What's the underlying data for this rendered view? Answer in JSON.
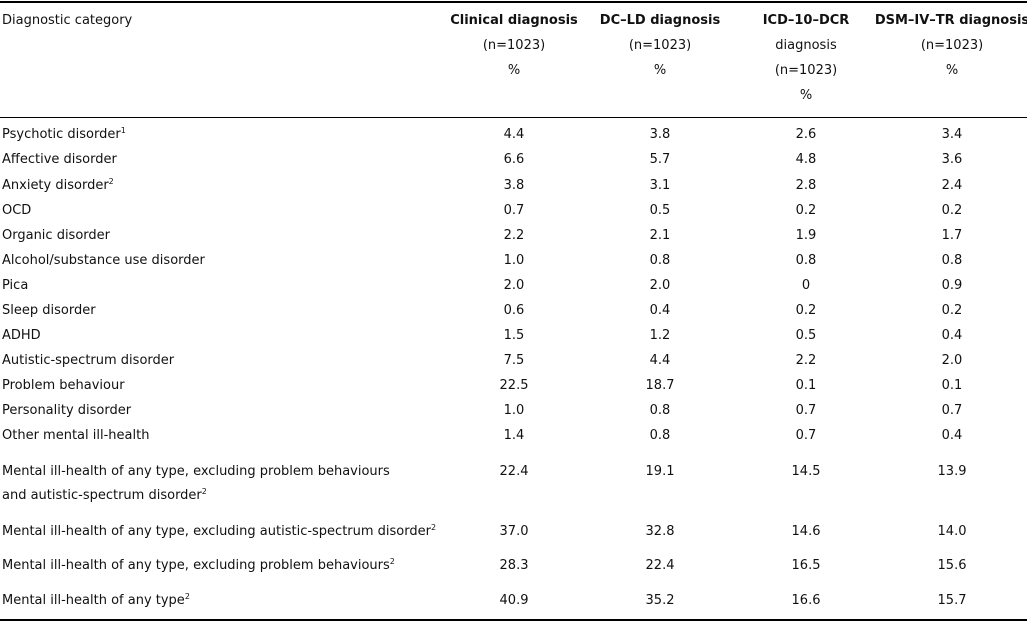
{
  "table": {
    "header": {
      "label": "Diagnostic category",
      "columns": [
        [
          "Clinical diagnosis",
          "(n=1023)",
          "%"
        ],
        [
          "DC–LD diagnosis",
          "(n=1023)",
          "%"
        ],
        [
          "ICD–10–DCR",
          "diagnosis",
          "(n=1023)",
          "%"
        ],
        [
          "DSM–IV–TR diagnosis",
          "(n=1023)",
          "%"
        ]
      ]
    },
    "rows": [
      {
        "label": "Psychotic disorder",
        "note": "1",
        "values": [
          "4.4",
          "3.8",
          "2.6",
          "3.4"
        ]
      },
      {
        "label": "Affective disorder",
        "values": [
          "6.6",
          "5.7",
          "4.8",
          "3.6"
        ]
      },
      {
        "label": "Anxiety disorder",
        "note": "2",
        "values": [
          "3.8",
          "3.1",
          "2.8",
          "2.4"
        ]
      },
      {
        "label": "OCD",
        "values": [
          "0.7",
          "0.5",
          "0.2",
          "0.2"
        ]
      },
      {
        "label": "Organic disorder",
        "values": [
          "2.2",
          "2.1",
          "1.9",
          "1.7"
        ]
      },
      {
        "label": "Alcohol/substance use disorder",
        "values": [
          "1.0",
          "0.8",
          "0.8",
          "0.8"
        ]
      },
      {
        "label": "Pica",
        "values": [
          "2.0",
          "2.0",
          "0",
          "0.9"
        ]
      },
      {
        "label": "Sleep disorder",
        "values": [
          "0.6",
          "0.4",
          "0.2",
          "0.2"
        ]
      },
      {
        "label": "ADHD",
        "values": [
          "1.5",
          "1.2",
          "0.5",
          "0.4"
        ]
      },
      {
        "label": "Autistic-spectrum disorder",
        "values": [
          "7.5",
          "4.4",
          "2.2",
          "2.0"
        ]
      },
      {
        "label": "Problem behaviour",
        "values": [
          "22.5",
          "18.7",
          "0.1",
          "0.1"
        ]
      },
      {
        "label": "Personality disorder",
        "values": [
          "1.0",
          "0.8",
          "0.7",
          "0.7"
        ]
      },
      {
        "label": "Other mental ill-health",
        "values": [
          "1.4",
          "0.8",
          "0.7",
          "0.4"
        ]
      },
      {
        "label": [
          "Mental ill-health of any type, excluding problem behaviours",
          "and autistic-spectrum disorder"
        ],
        "note": "2",
        "values": [
          "22.4",
          "19.1",
          "14.5",
          "13.9"
        ]
      },
      {
        "label": "Mental ill-health of any type, excluding autistic-spectrum disorder",
        "note": "2",
        "values": [
          "37.0",
          "32.8",
          "14.6",
          "14.0"
        ]
      },
      {
        "label": "Mental ill-health of any type, excluding problem behaviours",
        "note": "2",
        "values": [
          "28.3",
          "22.4",
          "16.5",
          "15.6"
        ]
      },
      {
        "label": "Mental ill-health of any type",
        "note": "2",
        "values": [
          "40.9",
          "35.2",
          "16.6",
          "15.7"
        ]
      }
    ]
  }
}
